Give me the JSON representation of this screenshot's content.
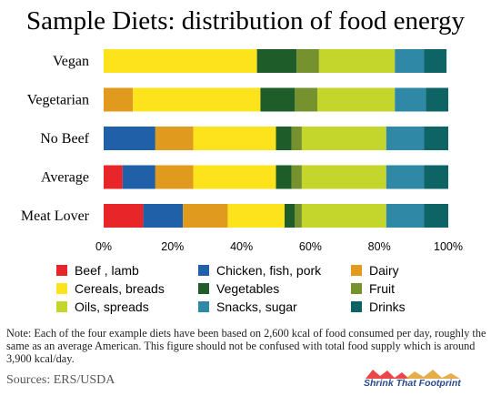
{
  "chart_data": {
    "type": "bar",
    "orientation": "horizontal",
    "stacked": true,
    "title": "Sample Diets: distribution of food energy",
    "categories": [
      "Vegan",
      "Vegetarian",
      "No Beef",
      "Average",
      "Meat Lover"
    ],
    "xlim": [
      0,
      100
    ],
    "xticks": [
      "0%",
      "20%",
      "40%",
      "60%",
      "80%",
      "100%"
    ],
    "grid": false,
    "legend_position": "bottom",
    "series": [
      {
        "name": "Beef , lamb",
        "color": "#e8262a",
        "values": [
          0,
          0,
          0,
          5.5,
          11.5
        ]
      },
      {
        "name": "Chicken, fish, pork",
        "color": "#2060a8",
        "values": [
          0,
          0,
          15,
          9.5,
          11.5
        ]
      },
      {
        "name": "Dairy",
        "color": "#e09a1e",
        "values": [
          0,
          8.5,
          11,
          11,
          13
        ]
      },
      {
        "name": "Cereals, breads",
        "color": "#fde31c",
        "values": [
          44.5,
          37,
          24,
          24,
          16.5
        ]
      },
      {
        "name": "Vegetables",
        "color": "#1e5c2a",
        "values": [
          11.5,
          10,
          4.5,
          4.5,
          3
        ]
      },
      {
        "name": "Fruit",
        "color": "#76922e",
        "values": [
          6.5,
          6.5,
          3,
          3,
          2
        ]
      },
      {
        "name": "Oils, spreads",
        "color": "#c4d52c",
        "values": [
          22,
          22.5,
          24.5,
          24.5,
          24.5
        ]
      },
      {
        "name": "Snacks, sugar",
        "color": "#2e88a6",
        "values": [
          8.5,
          9,
          11,
          11,
          11
        ]
      },
      {
        "name": "Drinks",
        "color": "#0e6464",
        "values": [
          6.5,
          6.5,
          7,
          7,
          7
        ]
      }
    ]
  },
  "note": "Note: Each of the four example diets have been based on 2,600 kcal of food consumed per day, roughly the same as an average American.  This figure should not be confused with total food supply which is around 3,900 kcal/day.",
  "sources": "Sources:  ERS/USDA",
  "brand": "Shrink That Footprint"
}
